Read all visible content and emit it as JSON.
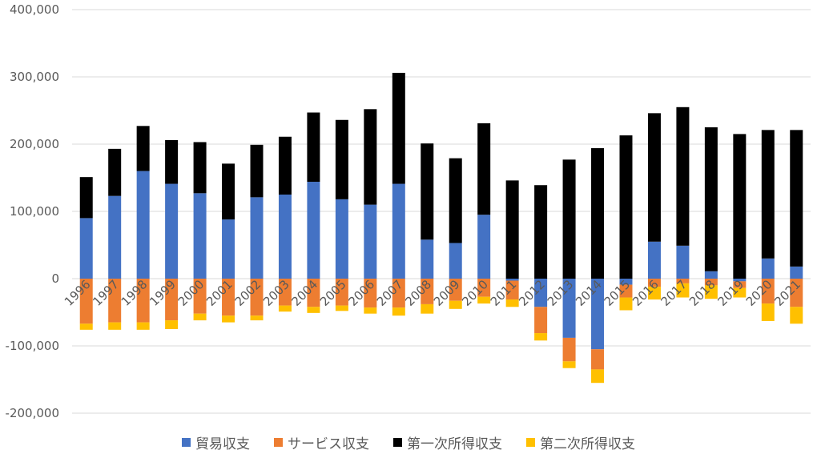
{
  "chart_data": {
    "type": "bar",
    "stacked": true,
    "categories": [
      "1996",
      "1997",
      "1998",
      "1999",
      "2000",
      "2001",
      "2002",
      "2003",
      "2004",
      "2005",
      "2006",
      "2007",
      "2008",
      "2009",
      "2010",
      "2011",
      "2012",
      "2013",
      "2014",
      "2015",
      "2016",
      "2017",
      "2018",
      "2019",
      "2020",
      "2021"
    ],
    "ylim": [
      -200000,
      400000
    ],
    "yticks": [
      400000,
      300000,
      200000,
      100000,
      0,
      -100000,
      -200000
    ],
    "ytick_labels": [
      "400,000",
      "300,000",
      "200,000",
      "100,000",
      "0",
      "-100,000",
      "-200,000"
    ],
    "grid": true,
    "legend_position": "bottom",
    "series": [
      {
        "name": "貿易収支",
        "color": "#4472c4",
        "values": [
          90000,
          123000,
          160000,
          141000,
          127000,
          88000,
          121000,
          125000,
          144000,
          118000,
          110000,
          141000,
          58000,
          53000,
          95000,
          -3000,
          -42000,
          -88000,
          -105000,
          -9000,
          55000,
          49000,
          11000,
          -4000,
          30000,
          18000
        ]
      },
      {
        "name": "サービス収支",
        "color": "#ed7d31",
        "values": [
          -67000,
          -65000,
          -65000,
          -62000,
          -52000,
          -55000,
          -55000,
          -40000,
          -42000,
          -40000,
          -43000,
          -43000,
          -38000,
          -33000,
          -27000,
          -28000,
          -39000,
          -35000,
          -30000,
          -19000,
          -12000,
          -7000,
          -10000,
          -10000,
          -37000,
          -42000
        ]
      },
      {
        "name": "第一次所得収支",
        "color": "#000000",
        "values": [
          61000,
          70000,
          67000,
          65000,
          76000,
          83000,
          78000,
          86000,
          103000,
          118000,
          142000,
          165000,
          143000,
          126000,
          136000,
          146000,
          139000,
          177000,
          194000,
          213000,
          191000,
          206000,
          214000,
          215000,
          191000,
          203000
        ]
      },
      {
        "name": "第二次所得収支",
        "color": "#ffc000",
        "values": [
          -9000,
          -11000,
          -11000,
          -13000,
          -10000,
          -10000,
          -7000,
          -9000,
          -9000,
          -8000,
          -9000,
          -12000,
          -14000,
          -12000,
          -10000,
          -11000,
          -11000,
          -10000,
          -20000,
          -19000,
          -19000,
          -21000,
          -20000,
          -14000,
          -26000,
          -25000
        ]
      }
    ]
  }
}
